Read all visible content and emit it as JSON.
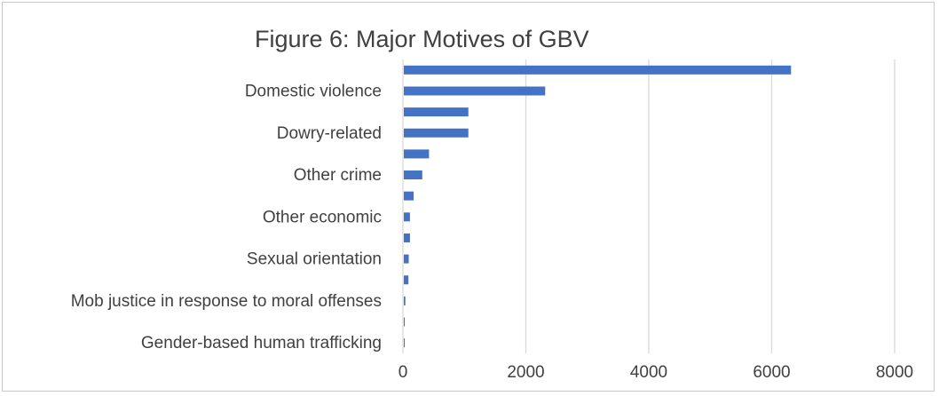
{
  "chart_data": {
    "type": "bar",
    "orientation": "horizontal",
    "title": "Figure 6: Major Motives of GBV",
    "xlabel": "",
    "ylabel": "",
    "xlim": [
      0,
      8000
    ],
    "x_ticks": [
      "0",
      "2000",
      "4000",
      "6000",
      "8000"
    ],
    "grid": true,
    "bar_color": "#4472c4",
    "categories": [
      "",
      "Domestic violence",
      "",
      "Dowry-related",
      "",
      "Other crime",
      "",
      "Other economic",
      "",
      "Sexual orientation",
      "",
      "Mob justice in response to moral offenses",
      "",
      "Gender-based human trafficking"
    ],
    "values": [
      6300,
      2300,
      1050,
      1050,
      410,
      300,
      160,
      100,
      100,
      80,
      75,
      25,
      15,
      5
    ]
  }
}
